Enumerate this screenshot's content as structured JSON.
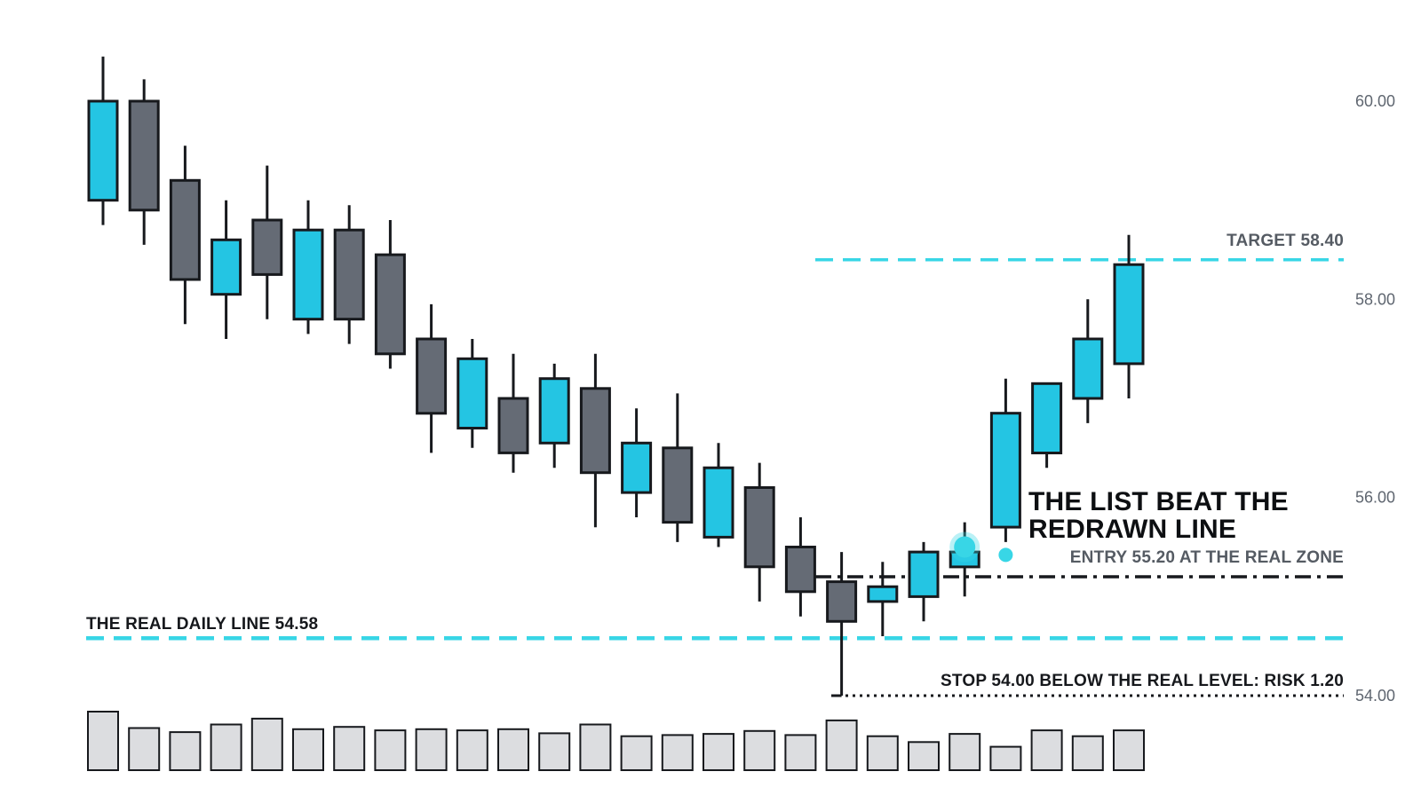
{
  "colors": {
    "bull": "#24c5e3",
    "bear": "#656b75",
    "outline": "#17191d",
    "volume": "#dcdde0",
    "cyan_line": "#38d6e6",
    "axis_text": "#5f6670"
  },
  "chart_data": {
    "type": "candlestick",
    "title": "",
    "xlabel": "",
    "ylabel": "",
    "ylim": [
      53.7,
      60.6
    ],
    "yticks": [
      "60.00",
      "58.00",
      "56.00",
      "54.00"
    ],
    "y_axis_side": "right",
    "grid": false,
    "ohlc": [
      {
        "o": 59.0,
        "h": 60.45,
        "l": 58.75,
        "c": 60.0
      },
      {
        "o": 60.0,
        "h": 60.22,
        "l": 58.55,
        "c": 58.9
      },
      {
        "o": 59.2,
        "h": 59.55,
        "l": 57.75,
        "c": 58.2
      },
      {
        "o": 58.05,
        "h": 59.0,
        "l": 57.6,
        "c": 58.6
      },
      {
        "o": 58.8,
        "h": 59.35,
        "l": 57.8,
        "c": 58.25
      },
      {
        "o": 57.8,
        "h": 59.0,
        "l": 57.65,
        "c": 58.7
      },
      {
        "o": 58.7,
        "h": 58.95,
        "l": 57.55,
        "c": 57.8
      },
      {
        "o": 58.45,
        "h": 58.8,
        "l": 57.3,
        "c": 57.45
      },
      {
        "o": 57.6,
        "h": 57.95,
        "l": 56.45,
        "c": 56.85
      },
      {
        "o": 56.7,
        "h": 57.6,
        "l": 56.5,
        "c": 57.4
      },
      {
        "o": 57.0,
        "h": 57.45,
        "l": 56.25,
        "c": 56.45
      },
      {
        "o": 56.55,
        "h": 57.35,
        "l": 56.3,
        "c": 57.2
      },
      {
        "o": 57.1,
        "h": 57.45,
        "l": 55.7,
        "c": 56.25
      },
      {
        "o": 56.05,
        "h": 56.9,
        "l": 55.8,
        "c": 56.55
      },
      {
        "o": 56.5,
        "h": 57.05,
        "l": 55.55,
        "c": 55.75
      },
      {
        "o": 55.6,
        "h": 56.55,
        "l": 55.5,
        "c": 56.3
      },
      {
        "o": 56.1,
        "h": 56.35,
        "l": 54.95,
        "c": 55.3
      },
      {
        "o": 55.5,
        "h": 55.8,
        "l": 54.8,
        "c": 55.05
      },
      {
        "o": 55.15,
        "h": 55.45,
        "l": 54.0,
        "c": 54.75
      },
      {
        "o": 54.95,
        "h": 55.35,
        "l": 54.6,
        "c": 55.1
      },
      {
        "o": 55.0,
        "h": 55.55,
        "l": 54.75,
        "c": 55.45
      },
      {
        "o": 55.3,
        "h": 55.75,
        "l": 55.0,
        "c": 55.45
      },
      {
        "o": 55.7,
        "h": 57.2,
        "l": 55.55,
        "c": 56.85
      },
      {
        "o": 56.45,
        "h": 57.1,
        "l": 56.3,
        "c": 57.15
      },
      {
        "o": 57.0,
        "h": 58.0,
        "l": 56.75,
        "c": 57.6
      },
      {
        "o": 57.35,
        "h": 58.65,
        "l": 57.0,
        "c": 58.35
      }
    ],
    "volume": [
      1.0,
      0.72,
      0.65,
      0.78,
      0.88,
      0.7,
      0.74,
      0.68,
      0.7,
      0.68,
      0.7,
      0.63,
      0.78,
      0.58,
      0.6,
      0.62,
      0.67,
      0.6,
      0.85,
      0.58,
      0.48,
      0.62,
      0.4,
      0.68,
      0.58,
      0.68
    ],
    "levels": [
      {
        "name": "target",
        "value": 58.4,
        "style": "dashed",
        "label": "TARGET 58.40"
      },
      {
        "name": "real-daily-line",
        "value": 54.58,
        "style": "dashed",
        "label": "THE REAL DAILY LINE 54.58"
      },
      {
        "name": "entry",
        "value": 55.2,
        "style": "dash-dot",
        "label": "ENTRY 55.20 AT THE REAL ZONE"
      },
      {
        "name": "stop",
        "value": 54.0,
        "style": "dotted",
        "label": "STOP 54.00 BELOW THE REAL LEVEL: RISK 1.20"
      }
    ],
    "headline": [
      "THE LIST BEAT THE",
      "REDRAWN LINE"
    ],
    "markers": [
      {
        "name": "entry-marker-large",
        "candle": 21,
        "value": 55.5,
        "size": "large"
      },
      {
        "name": "entry-marker-small",
        "candle": 22,
        "value": 55.42,
        "size": "small"
      }
    ]
  }
}
